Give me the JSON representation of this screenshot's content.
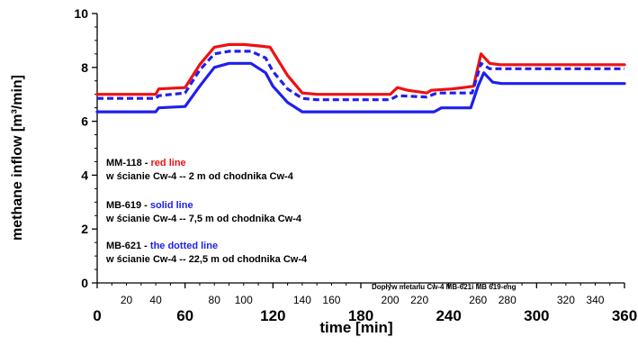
{
  "chart_data": {
    "type": "line",
    "xlabel": "time [min]",
    "ylabel": "methane inflow [m³/min]",
    "xlim": [
      0,
      360
    ],
    "ylim": [
      0,
      10
    ],
    "x_major_ticks": [
      "0",
      "60",
      "120",
      "180",
      "240",
      "300",
      "360"
    ],
    "x_minor_ticks": [
      "20",
      "40",
      "80",
      "100",
      "140",
      "160",
      "200",
      "220",
      "260",
      "280",
      "320",
      "340"
    ],
    "y_ticks": [
      "0",
      "2",
      "4",
      "6",
      "8",
      "10"
    ],
    "grid": false,
    "series": [
      {
        "name": "MM-118",
        "color": "#ee1111",
        "dash": "solid",
        "points": [
          [
            0,
            7.0
          ],
          [
            40,
            7.0
          ],
          [
            42,
            7.2
          ],
          [
            60,
            7.25
          ],
          [
            70,
            8.1
          ],
          [
            80,
            8.75
          ],
          [
            90,
            8.85
          ],
          [
            100,
            8.85
          ],
          [
            110,
            8.8
          ],
          [
            118,
            8.75
          ],
          [
            130,
            7.7
          ],
          [
            140,
            7.05
          ],
          [
            150,
            7.0
          ],
          [
            200,
            7.0
          ],
          [
            205,
            7.25
          ],
          [
            212,
            7.15
          ],
          [
            225,
            7.05
          ],
          [
            228,
            7.15
          ],
          [
            242,
            7.2
          ],
          [
            250,
            7.25
          ],
          [
            257,
            7.3
          ],
          [
            262,
            8.5
          ],
          [
            268,
            8.15
          ],
          [
            275,
            8.1
          ],
          [
            360,
            8.1
          ]
        ]
      },
      {
        "name": "MB-619",
        "color": "#1f1fee",
        "dash": "solid",
        "points": [
          [
            0,
            6.35
          ],
          [
            40,
            6.35
          ],
          [
            42,
            6.5
          ],
          [
            60,
            6.55
          ],
          [
            70,
            7.3
          ],
          [
            80,
            8.0
          ],
          [
            90,
            8.15
          ],
          [
            105,
            8.15
          ],
          [
            115,
            7.8
          ],
          [
            120,
            7.3
          ],
          [
            130,
            6.7
          ],
          [
            140,
            6.35
          ],
          [
            150,
            6.35
          ],
          [
            230,
            6.35
          ],
          [
            235,
            6.5
          ],
          [
            255,
            6.5
          ],
          [
            260,
            7.3
          ],
          [
            264,
            7.8
          ],
          [
            270,
            7.45
          ],
          [
            276,
            7.4
          ],
          [
            360,
            7.4
          ]
        ]
      },
      {
        "name": "MB-621",
        "color": "#1f1fee",
        "dash": "dotted",
        "points": [
          [
            0,
            6.85
          ],
          [
            40,
            6.85
          ],
          [
            42,
            6.95
          ],
          [
            60,
            7.05
          ],
          [
            70,
            7.9
          ],
          [
            80,
            8.5
          ],
          [
            90,
            8.6
          ],
          [
            105,
            8.6
          ],
          [
            115,
            8.35
          ],
          [
            120,
            7.85
          ],
          [
            130,
            7.2
          ],
          [
            140,
            6.85
          ],
          [
            150,
            6.8
          ],
          [
            200,
            6.8
          ],
          [
            205,
            6.95
          ],
          [
            225,
            6.9
          ],
          [
            232,
            7.05
          ],
          [
            250,
            7.05
          ],
          [
            256,
            7.05
          ],
          [
            262,
            8.15
          ],
          [
            268,
            7.95
          ],
          [
            275,
            7.95
          ],
          [
            360,
            7.95
          ]
        ]
      }
    ],
    "annotations": [
      {
        "code": "MM-118",
        "sep": " - ",
        "style": "red line",
        "style_color": "#ee1111",
        "location": "w ścianie Cw-4 -- 2 m od chodnika Cw-4"
      },
      {
        "code": "MB-619",
        "sep": " - ",
        "style": "solid line",
        "style_color": "#1f1fee",
        "location": "w ścianie Cw-4 -- 7,5 m od chodnika Cw-4"
      },
      {
        "code": "MB-621",
        "sep": " - ",
        "style": "the dotted line",
        "style_color": "#1f1fee",
        "location": "w ścianie Cw-4 -- 22,5 m od chodnika Cw-4"
      }
    ],
    "source_note": "Dopływ metanu Cw-4 MB-621i MB 619-eng"
  }
}
